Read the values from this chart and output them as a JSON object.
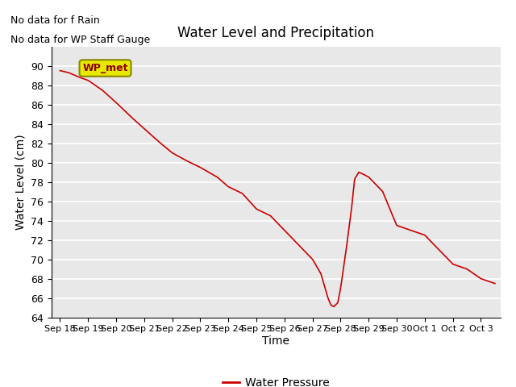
{
  "title": "Water Level and Precipitation",
  "xlabel": "Time",
  "ylabel": "Water Level (cm)",
  "ylim": [
    64,
    92
  ],
  "yticks": [
    64,
    66,
    68,
    70,
    72,
    74,
    76,
    78,
    80,
    82,
    84,
    86,
    88,
    90
  ],
  "line_color": "#CC0000",
  "line_label": "Water Pressure",
  "annotation_text_1": "No data for f Rain",
  "annotation_text_2": "No data for WP Staff Gauge",
  "legend_label": "WP_met",
  "x_tick_labels": [
    "Sep 18",
    "Sep 19",
    "Sep 20",
    "Sep 21",
    "Sep 22",
    "Sep 23",
    "Sep 24",
    "Sep 25",
    "Sep 26",
    "Sep 27",
    "Sep 28",
    "Sep 29",
    "Sep 30",
    "Oct 1",
    "Oct 2",
    "Oct 3"
  ],
  "background_color": "#e8e8e8",
  "grid_color": "#ffffff",
  "wp_met_bg": "#e8e800",
  "wp_met_fg": "#8B0000",
  "keypoints_t": [
    0,
    0.3,
    0.7,
    1.0,
    1.5,
    2.0,
    2.5,
    3.0,
    3.5,
    4.0,
    4.5,
    5.0,
    5.3,
    5.6,
    6.0,
    6.5,
    7.0,
    7.5,
    8.0,
    8.5,
    9.0,
    9.3,
    9.55,
    9.65,
    9.75,
    9.9,
    10.0,
    10.2,
    10.4,
    10.5,
    10.65,
    10.8,
    11.0,
    11.5,
    12.0,
    12.5,
    13.0,
    13.5,
    14.0,
    14.5,
    15.0,
    15.5
  ],
  "keypoints_v": [
    89.5,
    89.3,
    88.8,
    88.5,
    87.5,
    86.2,
    84.8,
    83.5,
    82.2,
    81.0,
    80.2,
    79.5,
    79.0,
    78.5,
    77.5,
    76.8,
    75.2,
    74.5,
    73.0,
    71.5,
    70.0,
    68.5,
    66.0,
    65.3,
    65.1,
    65.5,
    67.0,
    71.0,
    75.5,
    78.3,
    79.0,
    78.8,
    78.5,
    77.0,
    73.5,
    73.0,
    72.5,
    71.0,
    69.5,
    69.0,
    68.0,
    67.5
  ]
}
